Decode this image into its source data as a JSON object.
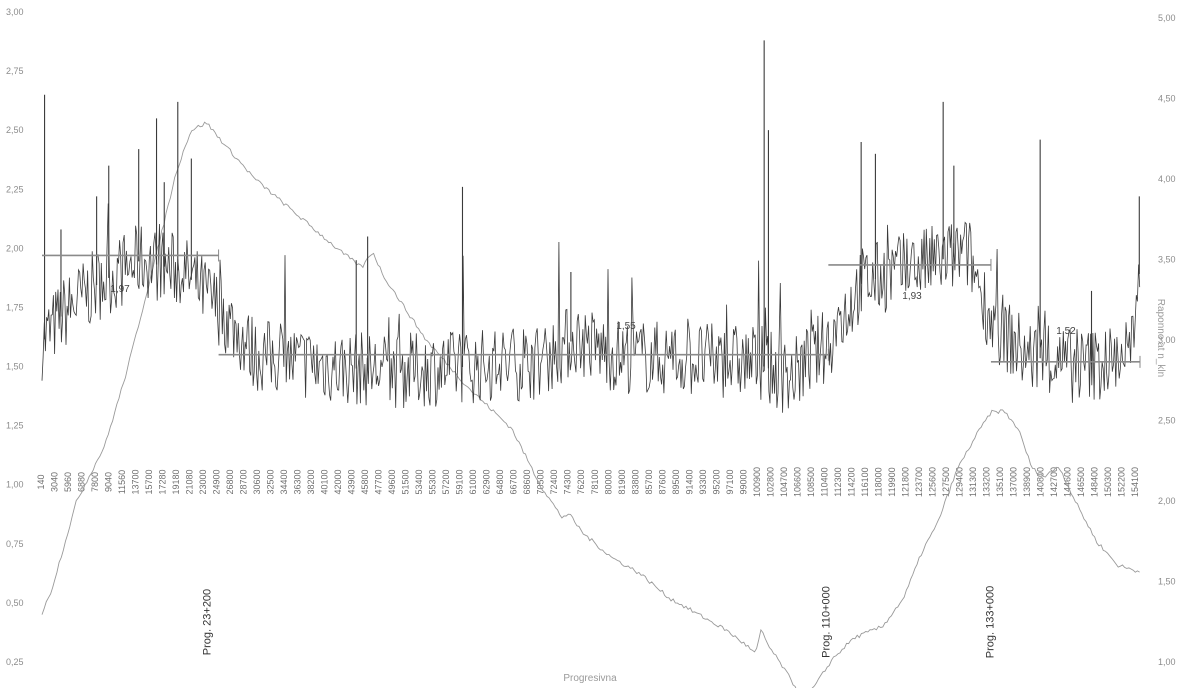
{
  "chart_data": {
    "type": "line",
    "xlabel": "Progresivna",
    "ylabel_right": "Raponno at n_kln",
    "x_tick_labels": [
      "140",
      "3040",
      "5960",
      "6880",
      "7800",
      "9040",
      "11560",
      "13700",
      "15700",
      "17280",
      "19180",
      "21080",
      "23000",
      "24900",
      "26800",
      "28700",
      "30600",
      "32500",
      "34400",
      "36300",
      "38200",
      "40100",
      "42000",
      "43900",
      "45800",
      "47700",
      "49600",
      "51500",
      "53400",
      "55300",
      "57200",
      "59100",
      "61000",
      "62900",
      "64800",
      "66700",
      "68600",
      "70500",
      "72400",
      "74300",
      "76200",
      "78100",
      "80000",
      "81900",
      "83800",
      "85700",
      "87600",
      "89500",
      "91400",
      "93300",
      "95200",
      "97100",
      "99000",
      "100900",
      "102800",
      "104700",
      "106600",
      "108500",
      "110400",
      "112300",
      "114200",
      "116100",
      "118000",
      "119900",
      "121800",
      "123700",
      "125600",
      "127500",
      "129400",
      "131300",
      "133200",
      "135100",
      "137000",
      "138900",
      "140800",
      "142700",
      "144600",
      "146500",
      "148400",
      "150300",
      "152200",
      "154100"
    ],
    "left_axis_ticks": [
      "3,00",
      "2,75",
      "2,50",
      "2,25",
      "2,00",
      "1,75",
      "1,50",
      "1,25",
      "1,00",
      "0,75",
      "0,50",
      "0,25"
    ],
    "right_axis_ticks": [
      "5,00",
      "4,50",
      "4,00",
      "3,50",
      "3,00",
      "2,50",
      "2,00",
      "1,50",
      "1,00"
    ],
    "segment_labels": [
      "1,97",
      "1,55",
      "1,93",
      "1,52"
    ],
    "segment_means": [
      {
        "label": "1,97",
        "x_from": 140,
        "x_to": 24900,
        "value": 1.97
      },
      {
        "label": "1,55",
        "x_from": 24900,
        "x_to": 110400,
        "value": 1.55
      },
      {
        "label": "1,93",
        "x_from": 110400,
        "x_to": 133200,
        "value": 1.93
      },
      {
        "label": "1,52",
        "x_from": 133200,
        "x_to": 154100,
        "value": 1.52
      }
    ],
    "section_markers": [
      "Prog. 23+200",
      "Prog. 110+000",
      "Prog. 133+000"
    ],
    "section_marker_x": [
      23200,
      110000,
      133000
    ],
    "series": [
      {
        "values_ref": "roughness",
        "axis": "left",
        "color": "#3a3a3a"
      },
      {
        "values_ref": "elevation",
        "axis": "right",
        "color": "#9a9a9a"
      }
    ],
    "roughness_baseline_profile": [
      [
        140,
        1.6
      ],
      [
        3000,
        1.72
      ],
      [
        8000,
        1.85
      ],
      [
        14000,
        1.95
      ],
      [
        20000,
        1.9
      ],
      [
        24900,
        1.75
      ],
      [
        30000,
        1.55
      ],
      [
        40000,
        1.5
      ],
      [
        50000,
        1.48
      ],
      [
        60000,
        1.5
      ],
      [
        70000,
        1.52
      ],
      [
        75000,
        1.62
      ],
      [
        80000,
        1.55
      ],
      [
        90000,
        1.53
      ],
      [
        100000,
        1.52
      ],
      [
        105000,
        1.45
      ],
      [
        110400,
        1.6
      ],
      [
        115000,
        1.85
      ],
      [
        120000,
        1.9
      ],
      [
        126000,
        1.95
      ],
      [
        130000,
        1.98
      ],
      [
        133200,
        1.7
      ],
      [
        138000,
        1.55
      ],
      [
        145000,
        1.5
      ],
      [
        150000,
        1.52
      ],
      [
        153500,
        1.6
      ],
      [
        154100,
        1.95
      ]
    ],
    "roughness_spikes": [
      [
        500,
        2.65
      ],
      [
        2800,
        2.08
      ],
      [
        7800,
        2.22
      ],
      [
        9500,
        2.35
      ],
      [
        13700,
        2.42
      ],
      [
        16200,
        2.55
      ],
      [
        17280,
        2.28
      ],
      [
        19180,
        2.62
      ],
      [
        21080,
        2.38
      ],
      [
        44200,
        1.95
      ],
      [
        45800,
        2.05
      ],
      [
        59100,
        2.26
      ],
      [
        74300,
        1.9
      ],
      [
        101400,
        2.88
      ],
      [
        102000,
        2.5
      ],
      [
        115000,
        2.45
      ],
      [
        117000,
        2.4
      ],
      [
        126500,
        2.62
      ],
      [
        128000,
        2.35
      ],
      [
        140100,
        2.46
      ],
      [
        147300,
        1.82
      ],
      [
        154000,
        2.22
      ]
    ],
    "elevation_profile": [
      [
        140,
        1.3
      ],
      [
        1500,
        1.45
      ],
      [
        5000,
        2.0
      ],
      [
        9000,
        2.35
      ],
      [
        12000,
        2.8
      ],
      [
        16000,
        3.5
      ],
      [
        19000,
        4.05
      ],
      [
        21000,
        4.3
      ],
      [
        23200,
        4.35
      ],
      [
        26000,
        4.2
      ],
      [
        30000,
        4.0
      ],
      [
        34000,
        3.85
      ],
      [
        38000,
        3.7
      ],
      [
        42000,
        3.55
      ],
      [
        45000,
        3.45
      ],
      [
        46500,
        3.55
      ],
      [
        48000,
        3.4
      ],
      [
        54000,
        3.0
      ],
      [
        60000,
        2.7
      ],
      [
        66000,
        2.45
      ],
      [
        70000,
        2.1
      ],
      [
        73000,
        1.9
      ],
      [
        74000,
        1.92
      ],
      [
        76000,
        1.8
      ],
      [
        80000,
        1.65
      ],
      [
        84000,
        1.55
      ],
      [
        88000,
        1.4
      ],
      [
        92000,
        1.3
      ],
      [
        96000,
        1.2
      ],
      [
        99000,
        1.1
      ],
      [
        100200,
        1.05
      ],
      [
        101000,
        1.2
      ],
      [
        102000,
        1.1
      ],
      [
        104000,
        0.97
      ],
      [
        106000,
        0.83
      ],
      [
        107200,
        0.78
      ],
      [
        108500,
        0.85
      ],
      [
        111000,
        1.02
      ],
      [
        114000,
        1.15
      ],
      [
        118000,
        1.22
      ],
      [
        121000,
        1.4
      ],
      [
        123700,
        1.7
      ],
      [
        125600,
        1.85
      ],
      [
        128500,
        2.2
      ],
      [
        131300,
        2.42
      ],
      [
        133200,
        2.55
      ],
      [
        135000,
        2.56
      ],
      [
        137000,
        2.45
      ],
      [
        139000,
        2.2
      ],
      [
        140800,
        2.15
      ],
      [
        142700,
        2.22
      ],
      [
        145000,
        2.0
      ],
      [
        148000,
        1.75
      ],
      [
        151000,
        1.6
      ],
      [
        154100,
        1.56
      ]
    ],
    "left_ylim": [
      0.25,
      3.0
    ],
    "right_ylim": [
      1.0,
      5.0
    ],
    "xlim": [
      140,
      154100
    ],
    "grid": false,
    "legend": "none"
  }
}
